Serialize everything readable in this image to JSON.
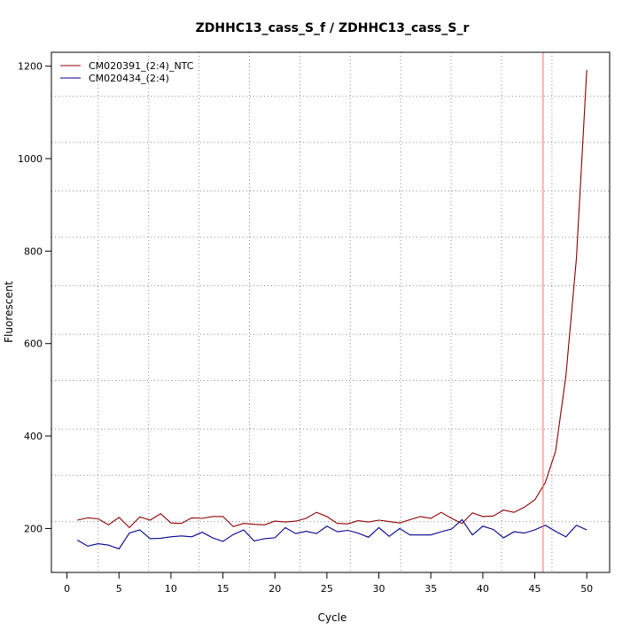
{
  "chart_data": {
    "type": "line",
    "title": "ZDHHC13_cass_S_f / ZDHHC13_cass_S_r",
    "xlabel": "Cycle",
    "ylabel": "Fluorescent",
    "xlim": [
      -1.5,
      52.2
    ],
    "ylim": [
      105,
      1230
    ],
    "x_ticks": [
      0,
      5,
      10,
      15,
      20,
      25,
      30,
      35,
      40,
      45,
      50
    ],
    "x_tick_labels": [
      "0",
      "5",
      "10",
      "15",
      "20",
      "25",
      "30",
      "35",
      "40",
      "45",
      "50"
    ],
    "y_ticks": [
      200,
      400,
      600,
      800,
      1000,
      1200
    ],
    "y_tick_labels": [
      "200",
      "400",
      "600",
      "800",
      "1000",
      "1200"
    ],
    "grid": "dotted",
    "grid_x": [
      3,
      7.85,
      12.7,
      17.55,
      22.4,
      27.25,
      32.1,
      36.95,
      41.8,
      46.65
    ],
    "grid_y": [
      215,
      315,
      415,
      520,
      620,
      725,
      830,
      930,
      1035,
      1135
    ],
    "threshold_cycle": 45.8,
    "threshold_color": "#ff6b6b",
    "legend_position": "top-left",
    "series": [
      {
        "name": "CM020391_(2:4)_NTC",
        "color": "#8b0000",
        "x": [
          1,
          2,
          3,
          4,
          5,
          6,
          7,
          8,
          9,
          10,
          11,
          12,
          13,
          14,
          15,
          16,
          17,
          18,
          19,
          20,
          21,
          22,
          23,
          24,
          25,
          26,
          27,
          28,
          29,
          30,
          31,
          32,
          33,
          34,
          35,
          36,
          37,
          38,
          39,
          40,
          41,
          42,
          43,
          44,
          45,
          46,
          47,
          48,
          49,
          50
        ],
        "values": [
          218,
          223,
          221,
          208,
          224,
          202,
          225,
          218,
          232,
          212,
          211,
          223,
          222,
          226,
          226,
          204,
          211,
          209,
          208,
          216,
          214,
          216,
          222,
          235,
          226,
          211,
          210,
          217,
          214,
          218,
          215,
          212,
          219,
          226,
          222,
          235,
          222,
          211,
          234,
          226,
          227,
          240,
          235,
          246,
          262,
          299,
          367,
          531,
          784,
          1192
        ]
      },
      {
        "name": "CM020434_(2:4)",
        "color": "#00008b",
        "x": [
          1,
          2,
          3,
          4,
          5,
          6,
          7,
          8,
          9,
          10,
          11,
          12,
          13,
          14,
          15,
          16,
          17,
          18,
          19,
          20,
          21,
          22,
          23,
          24,
          25,
          26,
          27,
          28,
          29,
          30,
          31,
          32,
          33,
          34,
          35,
          36,
          37,
          38,
          39,
          40,
          41,
          42,
          43,
          44,
          45,
          46,
          47,
          48,
          49,
          50
        ],
        "values": [
          175,
          162,
          167,
          164,
          156,
          190,
          197,
          178,
          179,
          182,
          184,
          182,
          192,
          180,
          172,
          187,
          197,
          173,
          178,
          180,
          202,
          189,
          194,
          189,
          205,
          193,
          196,
          190,
          181,
          202,
          183,
          200,
          186,
          186,
          186,
          193,
          199,
          219,
          186,
          205,
          198,
          180,
          193,
          190,
          197,
          207,
          194,
          182,
          207,
          197
        ]
      }
    ]
  }
}
